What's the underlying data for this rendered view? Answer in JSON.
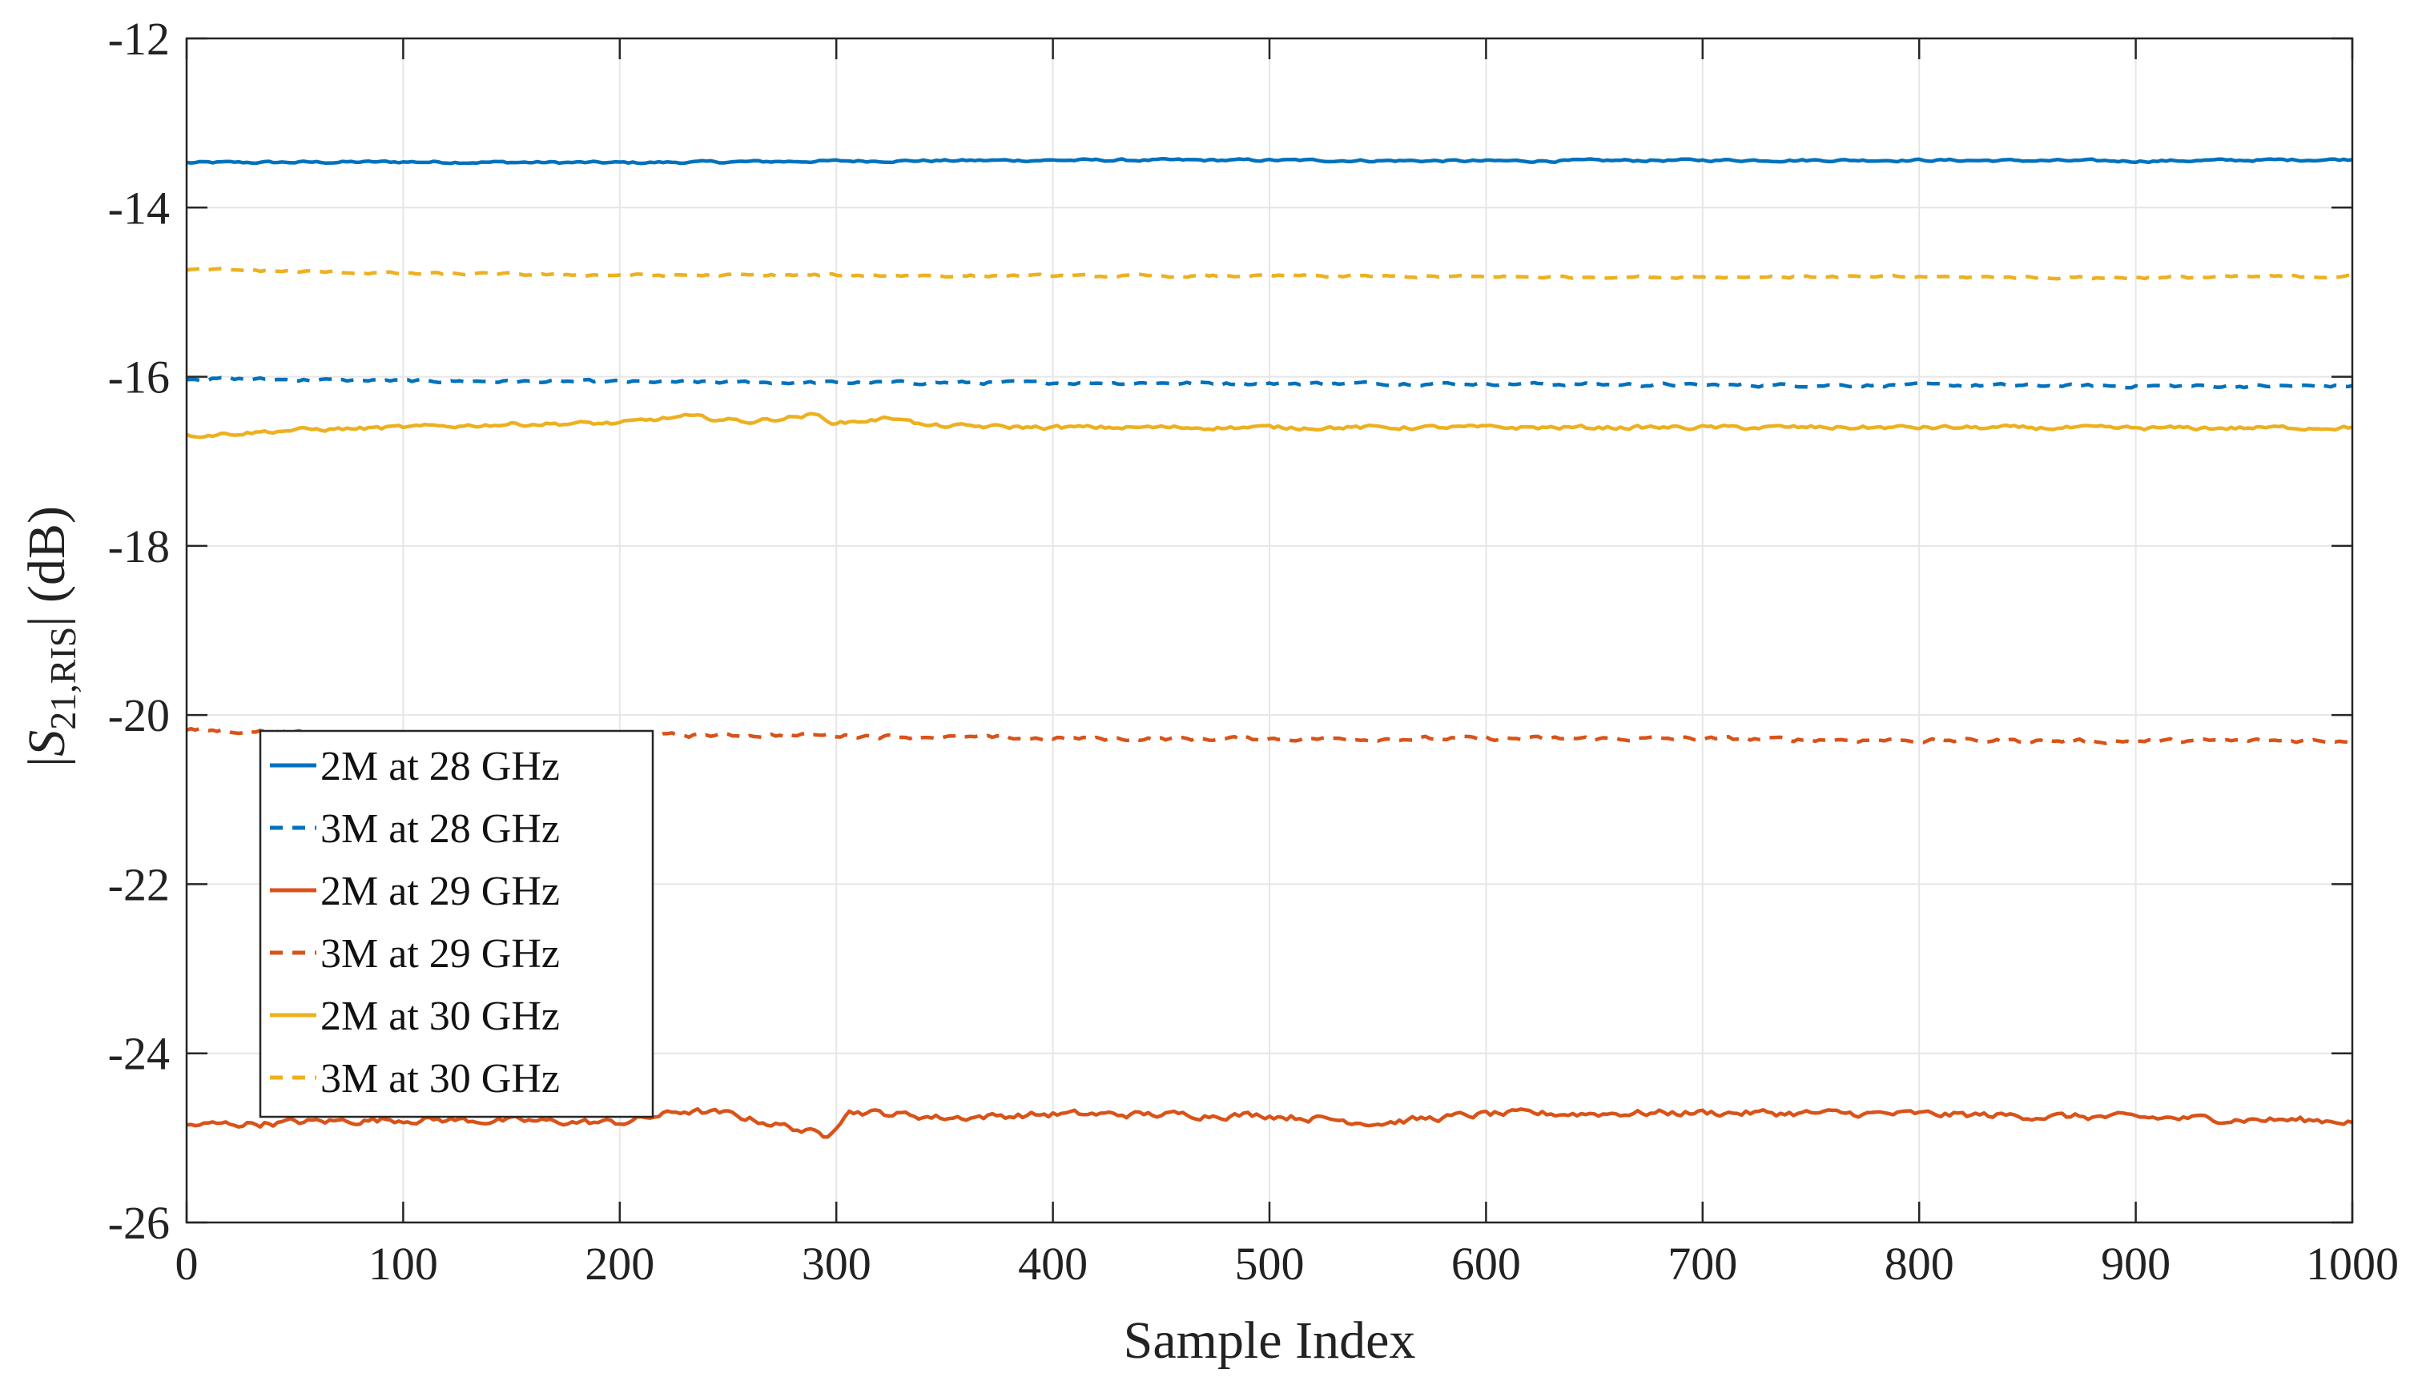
{
  "chart_data": {
    "type": "line",
    "title": "",
    "xlabel": "Sample Index",
    "ylabel": {
      "pre": "|",
      "var": "S",
      "sub": "21,RIS",
      "post": "| (dB)"
    },
    "xlim": [
      0,
      1000
    ],
    "ylim": [
      -26,
      -12
    ],
    "xticks": [
      0,
      100,
      200,
      300,
      400,
      500,
      600,
      700,
      800,
      900,
      1000
    ],
    "yticks": [
      -26,
      -24,
      -22,
      -20,
      -18,
      -16,
      -14,
      -12
    ],
    "xtick_labels": [
      "0",
      "100",
      "200",
      "300",
      "400",
      "500",
      "600",
      "700",
      "800",
      "900",
      "1000"
    ],
    "ytick_labels": [
      "-26",
      "-24",
      "-22",
      "-20",
      "-18",
      "-16",
      "-14",
      "-12"
    ],
    "grid": true,
    "legend_position": "lower-left",
    "series": [
      {
        "name": "2M at 28 GHz",
        "color": "#0072BD",
        "style": "solid",
        "x": [
          0,
          100,
          200,
          300,
          400,
          500,
          600,
          700,
          800,
          900,
          1000
        ],
        "y": [
          -13.47,
          -13.46,
          -13.47,
          -13.45,
          -13.44,
          -13.44,
          -13.45,
          -13.44,
          -13.44,
          -13.45,
          -13.43
        ]
      },
      {
        "name": "3M at 28 GHz",
        "color": "#0072BD",
        "style": "dashed",
        "x": [
          0,
          100,
          200,
          300,
          400,
          500,
          600,
          700,
          800,
          900,
          1000
        ],
        "y": [
          -16.02,
          -16.05,
          -16.06,
          -16.07,
          -16.07,
          -16.08,
          -16.08,
          -16.1,
          -16.1,
          -16.11,
          -16.11
        ]
      },
      {
        "name": "2M at 29 GHz",
        "color": "#D95319",
        "style": "solid",
        "x": [
          0,
          100,
          200,
          230,
          250,
          280,
          295,
          305,
          350,
          400,
          500,
          550,
          600,
          700,
          800,
          900,
          1000
        ],
        "y": [
          -24.85,
          -24.78,
          -24.82,
          -24.68,
          -24.72,
          -24.88,
          -24.98,
          -24.68,
          -24.76,
          -24.72,
          -24.73,
          -24.82,
          -24.72,
          -24.7,
          -24.72,
          -24.76,
          -24.8
        ]
      },
      {
        "name": "3M at 29 GHz",
        "color": "#D95319",
        "style": "dashed",
        "x": [
          0,
          100,
          200,
          300,
          400,
          500,
          600,
          700,
          800,
          900,
          1000
        ],
        "y": [
          -20.18,
          -20.22,
          -20.24,
          -20.24,
          -20.28,
          -20.28,
          -20.28,
          -20.28,
          -20.3,
          -20.31,
          -20.3
        ]
      },
      {
        "name": "2M at 30 GHz",
        "color": "#EDB120",
        "style": "solid",
        "x": [
          0,
          50,
          100,
          150,
          200,
          230,
          260,
          290,
          300,
          330,
          340,
          400,
          500,
          600,
          700,
          800,
          900,
          1000
        ],
        "y": [
          -16.7,
          -16.63,
          -16.6,
          -16.56,
          -16.55,
          -16.47,
          -16.53,
          -16.45,
          -16.55,
          -16.48,
          -16.58,
          -16.6,
          -16.6,
          -16.6,
          -16.6,
          -16.6,
          -16.61,
          -16.6
        ]
      },
      {
        "name": "3M at 30 GHz",
        "color": "#EDB120",
        "style": "dashed",
        "x": [
          0,
          100,
          200,
          300,
          400,
          500,
          600,
          700,
          800,
          900,
          1000
        ],
        "y": [
          -14.73,
          -14.78,
          -14.8,
          -14.8,
          -14.81,
          -14.81,
          -14.82,
          -14.82,
          -14.82,
          -14.83,
          -14.81
        ]
      }
    ]
  }
}
